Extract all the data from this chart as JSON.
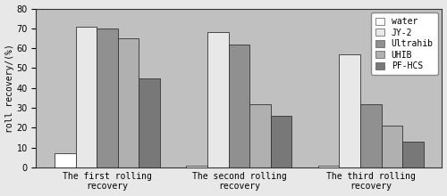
{
  "groups": [
    "The first rolling\nrecovery",
    "The second rolling\nrecovery",
    "The third rolling\nrecovery"
  ],
  "series": [
    {
      "label": "water",
      "color": "#ffffff",
      "values": [
        7,
        1,
        1
      ]
    },
    {
      "label": "JY-2",
      "color": "#e8e8e8",
      "values": [
        71,
        68,
        57
      ]
    },
    {
      "label": "Ultrahib",
      "color": "#909090",
      "values": [
        70,
        62,
        32
      ]
    },
    {
      "label": "UHIB",
      "color": "#b0b0b0",
      "values": [
        65,
        32,
        21
      ]
    },
    {
      "label": "PF-HCS",
      "color": "#787878",
      "values": [
        45,
        26,
        13
      ]
    }
  ],
  "ylabel": "roll recovery/(%)",
  "ylim": [
    0,
    80
  ],
  "yticks": [
    0,
    10,
    20,
    30,
    40,
    50,
    60,
    70,
    80
  ],
  "fig_bg_color": "#c8c8c8",
  "plot_bg_color": "#c0c0c0",
  "outer_bg_color": "#e8e8e8",
  "bar_edge_color": "#333333",
  "bar_edge_width": 0.6,
  "legend_fontsize": 7,
  "axis_fontsize": 7,
  "tick_fontsize": 7,
  "bar_width": 0.16
}
